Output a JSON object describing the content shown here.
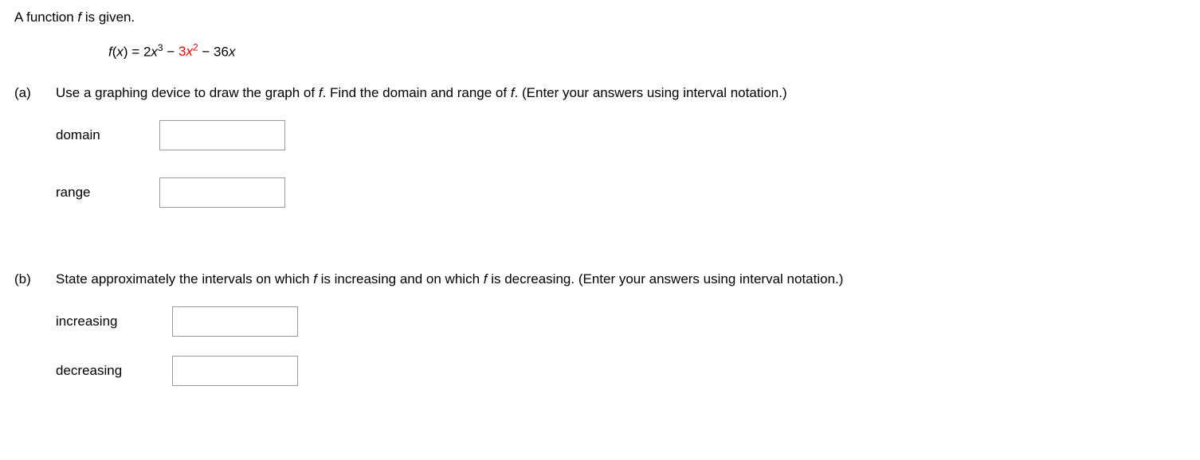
{
  "intro": {
    "prefix": "A function ",
    "fn_letter": "f",
    "suffix": " is given."
  },
  "equation": {
    "lhs_f": "f",
    "lhs_open": "(",
    "lhs_var": "x",
    "lhs_close": ") = ",
    "term1_coef": "2",
    "term1_var": "x",
    "term1_exp": "3",
    "minus1": " − ",
    "term2_coef": "3",
    "term2_var": "x",
    "term2_exp": "2",
    "minus2": " − 36",
    "term3_var": "x"
  },
  "parts": {
    "a": {
      "label": "(a)",
      "prompt_1": "Use a graphing device to draw the graph of ",
      "prompt_f1": "f",
      "prompt_2": ". Find the domain and range of ",
      "prompt_f2": "f",
      "prompt_3": ". (Enter your answers using interval notation.)",
      "rows": {
        "domain": {
          "label": "domain",
          "value": ""
        },
        "range": {
          "label": "range",
          "value": ""
        }
      }
    },
    "b": {
      "label": "(b)",
      "prompt_1": "State approximately the intervals on which ",
      "prompt_f1": "f",
      "prompt_2": " is increasing and on which ",
      "prompt_f2": "f",
      "prompt_3": " is decreasing. (Enter your answers using interval notation.)",
      "rows": {
        "increasing": {
          "label": "increasing",
          "value": ""
        },
        "decreasing": {
          "label": "decreasing",
          "value": ""
        }
      }
    }
  }
}
